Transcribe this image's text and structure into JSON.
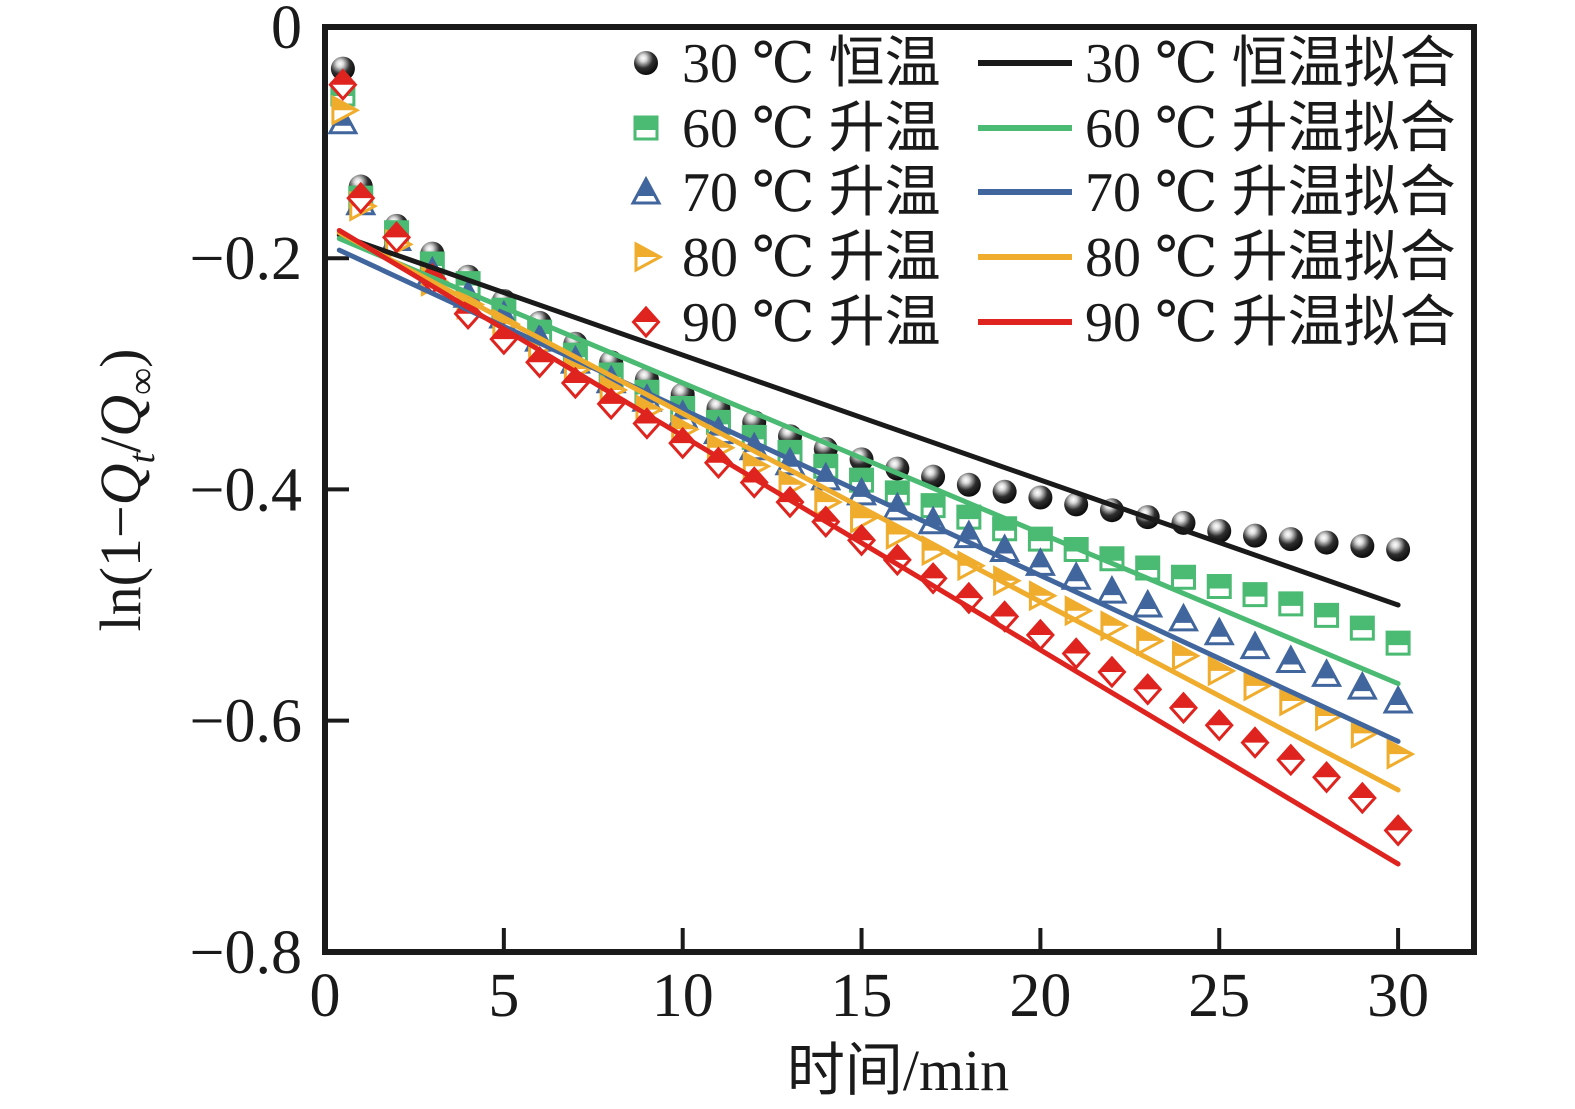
{
  "figure": {
    "background": "#ffffff",
    "axis_color": "#1a1a1a"
  },
  "chart_data": {
    "type": "scatter",
    "title": "",
    "xlabel": "时间/min",
    "ylabel": "ln(1−Qt/Q∞)",
    "ylabel_parts": [
      {
        "t": "ln(1−"
      },
      {
        "t": "Q",
        "italic": true
      },
      {
        "t": "t",
        "sub": true,
        "italic": true
      },
      {
        "t": "/"
      },
      {
        "t": "Q",
        "italic": true
      },
      {
        "t": "∞",
        "sub": true
      },
      {
        "t": ")"
      }
    ],
    "xlim": [
      0,
      32.1
    ],
    "ylim": [
      -0.8,
      0
    ],
    "grid": false,
    "x_ticks": [
      0,
      5,
      10,
      15,
      20,
      25,
      30
    ],
    "x_tick_labels": [
      "0",
      "5",
      "10",
      "15",
      "20",
      "25",
      "30"
    ],
    "y_ticks": [
      0,
      -0.2,
      -0.4,
      -0.6,
      -0.8
    ],
    "y_tick_labels": [
      "0",
      "−0.2",
      "−0.4",
      "−0.6",
      "−0.8"
    ],
    "legend_position": "upper-center inside, two columns (markers | fit lines)",
    "x": [
      0.5,
      1,
      2,
      3,
      4,
      5,
      6,
      7,
      8,
      9,
      10,
      11,
      12,
      13,
      14,
      15,
      16,
      17,
      18,
      19,
      20,
      21,
      22,
      23,
      24,
      25,
      26,
      27,
      28,
      29,
      30
    ],
    "series": [
      {
        "id": "30c",
        "name": "30 ℃ 恒温",
        "marker": "sphere",
        "color": "#1a1a1a",
        "values": [
          -0.036,
          -0.138,
          -0.172,
          -0.196,
          -0.216,
          -0.237,
          -0.256,
          -0.274,
          -0.29,
          -0.305,
          -0.318,
          -0.33,
          -0.342,
          -0.354,
          -0.365,
          -0.374,
          -0.382,
          -0.389,
          -0.396,
          -0.402,
          -0.407,
          -0.413,
          -0.418,
          -0.424,
          -0.429,
          -0.436,
          -0.44,
          -0.443,
          -0.446,
          -0.449,
          -0.452
        ]
      },
      {
        "id": "60c",
        "name": "60 ℃ 升温",
        "marker": "square-halftop",
        "color": "#4bba72",
        "values": [
          -0.058,
          -0.148,
          -0.178,
          -0.205,
          -0.222,
          -0.245,
          -0.264,
          -0.284,
          -0.301,
          -0.316,
          -0.33,
          -0.342,
          -0.355,
          -0.368,
          -0.38,
          -0.392,
          -0.403,
          -0.414,
          -0.424,
          -0.434,
          -0.443,
          -0.452,
          -0.46,
          -0.468,
          -0.476,
          -0.484,
          -0.491,
          -0.499,
          -0.509,
          -0.52,
          -0.533
        ]
      },
      {
        "id": "70c",
        "name": "70 ℃ 升温",
        "marker": "triangle-up-halftop",
        "color": "#41669e",
        "values": [
          -0.082,
          -0.152,
          -0.183,
          -0.212,
          -0.232,
          -0.25,
          -0.27,
          -0.289,
          -0.306,
          -0.322,
          -0.336,
          -0.35,
          -0.364,
          -0.377,
          -0.39,
          -0.403,
          -0.416,
          -0.428,
          -0.44,
          -0.452,
          -0.464,
          -0.476,
          -0.488,
          -0.5,
          -0.512,
          -0.524,
          -0.536,
          -0.548,
          -0.56,
          -0.571,
          -0.583
        ]
      },
      {
        "id": "80c",
        "name": "80 ℃ 升温",
        "marker": "triangle-right-halftop",
        "color": "#efac2d",
        "values": [
          -0.072,
          -0.155,
          -0.188,
          -0.22,
          -0.24,
          -0.257,
          -0.276,
          -0.296,
          -0.314,
          -0.331,
          -0.348,
          -0.364,
          -0.38,
          -0.396,
          -0.411,
          -0.425,
          -0.439,
          -0.453,
          -0.466,
          -0.479,
          -0.492,
          -0.505,
          -0.518,
          -0.531,
          -0.544,
          -0.557,
          -0.57,
          -0.583,
          -0.596,
          -0.611,
          -0.629
        ]
      },
      {
        "id": "90c",
        "name": "90 ℃ 升温",
        "marker": "diamond-halftop",
        "color": "#df241f",
        "values": [
          -0.05,
          -0.148,
          -0.182,
          -0.218,
          -0.248,
          -0.27,
          -0.29,
          -0.308,
          -0.326,
          -0.343,
          -0.36,
          -0.377,
          -0.394,
          -0.411,
          -0.428,
          -0.444,
          -0.461,
          -0.477,
          -0.494,
          -0.51,
          -0.526,
          -0.542,
          -0.558,
          -0.573,
          -0.589,
          -0.604,
          -0.619,
          -0.634,
          -0.649,
          -0.667,
          -0.695
        ]
      }
    ],
    "fit_lines": [
      {
        "id": "30c-fit",
        "name": "30 ℃ 恒温拟合",
        "color": "#1a1a1a",
        "x": [
          0.4,
          30
        ],
        "y": [
          -0.18,
          -0.5
        ]
      },
      {
        "id": "60c-fit",
        "name": "60 ℃ 升温拟合",
        "color": "#4bba72",
        "x": [
          0.4,
          30
        ],
        "y": [
          -0.183,
          -0.568
        ]
      },
      {
        "id": "70c-fit",
        "name": "70 ℃ 升温拟合",
        "color": "#41669e",
        "x": [
          0.4,
          30
        ],
        "y": [
          -0.193,
          -0.618
        ]
      },
      {
        "id": "80c-fit",
        "name": "80 ℃ 升温拟合",
        "color": "#efac2d",
        "x": [
          0.4,
          30
        ],
        "y": [
          -0.178,
          -0.66
        ]
      },
      {
        "id": "90c-fit",
        "name": "90 ℃ 升温拟合",
        "color": "#df241f",
        "x": [
          0.4,
          30
        ],
        "y": [
          -0.176,
          -0.724
        ]
      }
    ],
    "legend": {
      "marker_items": [
        {
          "id": "30c",
          "label": "30 ℃ 恒温",
          "marker": "sphere",
          "color": "#1a1a1a"
        },
        {
          "id": "60c",
          "label": "60 ℃ 升温",
          "marker": "square-halftop",
          "color": "#4bba72"
        },
        {
          "id": "70c",
          "label": "70 ℃ 升温",
          "marker": "triangle-up-halftop",
          "color": "#41669e"
        },
        {
          "id": "80c",
          "label": "80 ℃ 升温",
          "marker": "triangle-right-halftop",
          "color": "#efac2d"
        },
        {
          "id": "90c",
          "label": "90 ℃ 升温",
          "marker": "diamond-halftop",
          "color": "#df241f"
        }
      ],
      "line_items": [
        {
          "id": "30c-fit",
          "label": "30 ℃ 恒温拟合",
          "color": "#1a1a1a"
        },
        {
          "id": "60c-fit",
          "label": "60 ℃ 升温拟合",
          "color": "#4bba72"
        },
        {
          "id": "70c-fit",
          "label": "70 ℃ 升温拟合",
          "color": "#41669e"
        },
        {
          "id": "80c-fit",
          "label": "80 ℃ 升温拟合",
          "color": "#efac2d"
        },
        {
          "id": "90c-fit",
          "label": "90 ℃ 升温拟合",
          "color": "#df241f"
        }
      ]
    }
  }
}
